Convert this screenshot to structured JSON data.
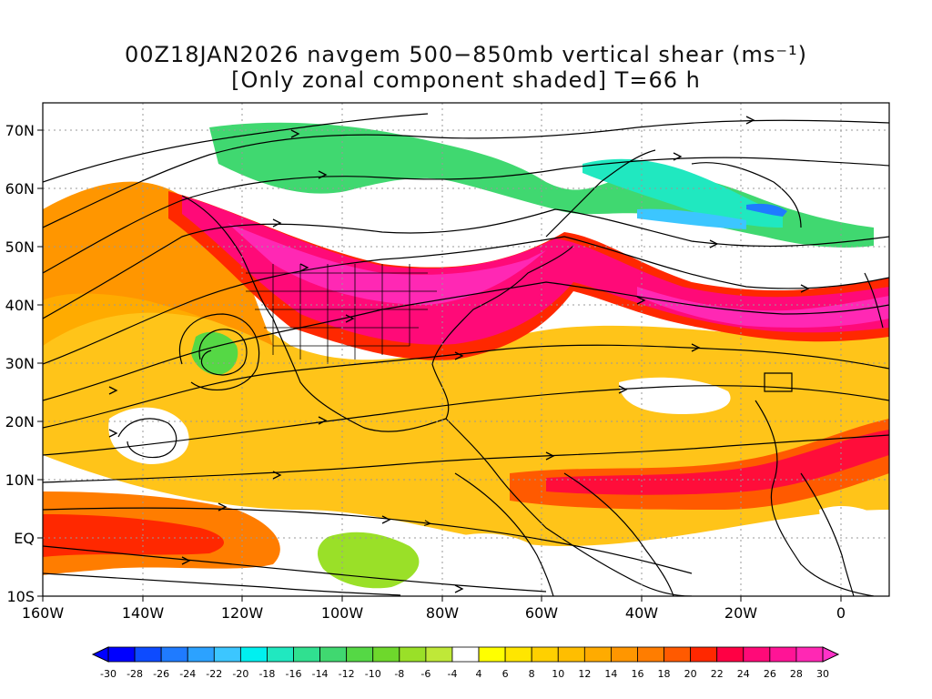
{
  "title": {
    "line1": "00Z18JAN2026 navgem 500−850mb vertical shear (ms⁻¹)",
    "line2": "[Only zonal component shaded] T=66 h"
  },
  "map": {
    "lon_range": [
      -160,
      10
    ],
    "lat_range": [
      -10,
      75
    ],
    "lon_ticks": [
      "160W",
      "140W",
      "120W",
      "100W",
      "80W",
      "60W",
      "40W",
      "20W",
      "0"
    ],
    "lat_ticks": [
      "10S",
      "EQ",
      "10N",
      "20N",
      "30N",
      "40N",
      "50N",
      "60N",
      "70N"
    ]
  },
  "colorbar": {
    "labels": [
      "-30",
      "-28",
      "-26",
      "-24",
      "-22",
      "-20",
      "-18",
      "-16",
      "-14",
      "-12",
      "-10",
      "-8",
      "-6",
      "-4",
      "4",
      "6",
      "8",
      "10",
      "12",
      "14",
      "16",
      "18",
      "20",
      "22",
      "24",
      "26",
      "28",
      "30"
    ],
    "colors": [
      "#0000ff",
      "#0d4bff",
      "#1f7bff",
      "#2ca2ff",
      "#3cc6ff",
      "#00f0f0",
      "#20e8c0",
      "#30e090",
      "#40d870",
      "#55d845",
      "#6ed82c",
      "#9ae028",
      "#bfe838",
      "#ffffff",
      "#ffff00",
      "#ffe600",
      "#ffd000",
      "#ffbe00",
      "#ffab00",
      "#ff9600",
      "#ff7d00",
      "#ff5a00",
      "#ff2800",
      "#ff0044",
      "#ff0a78",
      "#ff1496",
      "#ff28b4"
    ],
    "under_color": "#0000ff",
    "over_color": "#ff32c8"
  }
}
